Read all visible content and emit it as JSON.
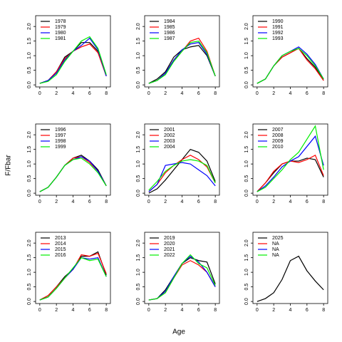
{
  "xlabel": "Age",
  "ylabel": "F/Fbar",
  "chart_data": [
    {
      "type": "line",
      "x": [
        0,
        1,
        2,
        3,
        4,
        5,
        6,
        7,
        8
      ],
      "xlim": [
        -0.5,
        8.5
      ],
      "xticks": [
        0,
        2,
        4,
        6,
        8
      ],
      "ylim": [
        -0.07,
        2.37
      ],
      "yticks": [
        {
          "value": 0,
          "label": "0.0"
        },
        {
          "value": 0.5,
          "label": "0.5"
        },
        {
          "value": 1,
          "label": "1.0"
        },
        {
          "value": 1.5,
          "label": "1.5"
        },
        {
          "value": 2,
          "label": "2.0"
        }
      ],
      "legend": "top-left",
      "series": [
        {
          "name": "1978",
          "color": "#000000",
          "values": [
            0.05,
            0.15,
            0.45,
            0.95,
            1.15,
            1.45,
            1.45,
            1.15,
            0.3
          ]
        },
        {
          "name": "1979",
          "color": "#ff0000",
          "values": [
            0.05,
            0.15,
            0.45,
            0.9,
            1.15,
            1.3,
            1.4,
            1.1,
            0.3
          ]
        },
        {
          "name": "1980",
          "color": "#0000ff",
          "values": [
            0.05,
            0.15,
            0.4,
            0.85,
            1.15,
            1.35,
            1.6,
            1.2,
            0.3
          ]
        },
        {
          "name": "1981",
          "color": "#00ee00",
          "values": [
            0.05,
            0.12,
            0.35,
            0.8,
            1.15,
            1.5,
            1.65,
            1.25,
            0.35
          ]
        }
      ]
    },
    {
      "type": "line",
      "x": [
        0,
        1,
        2,
        3,
        4,
        5,
        6,
        7,
        8
      ],
      "xlim": [
        -0.5,
        8.5
      ],
      "xticks": [
        0,
        2,
        4,
        6,
        8
      ],
      "ylim": [
        -0.07,
        2.37
      ],
      "yticks": [
        {
          "value": 0,
          "label": "0.0"
        },
        {
          "value": 0.5,
          "label": "0.5"
        },
        {
          "value": 1,
          "label": "1.0"
        },
        {
          "value": 1.5,
          "label": "1.5"
        },
        {
          "value": 2,
          "label": "2.0"
        }
      ],
      "legend": "top-left",
      "series": [
        {
          "name": "1984",
          "color": "#000000",
          "values": [
            0.05,
            0.2,
            0.45,
            0.95,
            1.2,
            1.3,
            1.35,
            1.0,
            0.3
          ]
        },
        {
          "name": "1985",
          "color": "#ff0000",
          "values": [
            0.05,
            0.15,
            0.4,
            0.85,
            1.15,
            1.5,
            1.6,
            1.15,
            0.3
          ]
        },
        {
          "name": "1986",
          "color": "#0000ff",
          "values": [
            0.05,
            0.15,
            0.4,
            0.85,
            1.2,
            1.4,
            1.45,
            1.05,
            0.3
          ]
        },
        {
          "name": "1987",
          "color": "#00ee00",
          "values": [
            0.05,
            0.15,
            0.35,
            0.8,
            1.15,
            1.45,
            1.5,
            1.1,
            0.3
          ]
        }
      ]
    },
    {
      "type": "line",
      "x": [
        0,
        1,
        2,
        3,
        4,
        5,
        6,
        7,
        8
      ],
      "xlim": [
        -0.5,
        8.5
      ],
      "xticks": [
        0,
        2,
        4,
        6,
        8
      ],
      "ylim": [
        -0.07,
        2.37
      ],
      "yticks": [
        {
          "value": 0,
          "label": "0.0"
        },
        {
          "value": 0.5,
          "label": "0.5"
        },
        {
          "value": 1,
          "label": "1.0"
        },
        {
          "value": 1.5,
          "label": "1.5"
        },
        {
          "value": 2,
          "label": "2.0"
        }
      ],
      "legend": "top-left",
      "series": [
        {
          "name": "1990",
          "color": "#000000",
          "values": [
            0.05,
            0.2,
            0.65,
            0.95,
            1.1,
            1.25,
            0.9,
            0.6,
            0.15
          ]
        },
        {
          "name": "1991",
          "color": "#ff0000",
          "values": [
            0.05,
            0.2,
            0.65,
            0.95,
            1.1,
            1.25,
            0.85,
            0.55,
            0.15
          ]
        },
        {
          "name": "1992",
          "color": "#0000ff",
          "values": [
            0.05,
            0.2,
            0.65,
            1.0,
            1.15,
            1.3,
            1.05,
            0.7,
            0.2
          ]
        },
        {
          "name": "1993",
          "color": "#00ee00",
          "values": [
            0.05,
            0.2,
            0.65,
            1.0,
            1.15,
            1.25,
            1.0,
            0.65,
            0.2
          ]
        }
      ]
    },
    {
      "type": "line",
      "x": [
        0,
        1,
        2,
        3,
        4,
        5,
        6,
        7,
        8
      ],
      "xlim": [
        -0.5,
        8.5
      ],
      "xticks": [
        0,
        2,
        4,
        6,
        8
      ],
      "ylim": [
        -0.07,
        2.37
      ],
      "yticks": [
        {
          "value": 0,
          "label": "0.0"
        },
        {
          "value": 0.5,
          "label": "0.5"
        },
        {
          "value": 1,
          "label": "1.0"
        },
        {
          "value": 1.5,
          "label": "1.5"
        },
        {
          "value": 2,
          "label": "2.0"
        }
      ],
      "legend": "top-left",
      "series": [
        {
          "name": "1996",
          "color": "#000000",
          "values": [
            0.05,
            0.2,
            0.55,
            0.95,
            1.2,
            1.3,
            1.1,
            0.8,
            0.25
          ]
        },
        {
          "name": "1997",
          "color": "#ff0000",
          "values": [
            0.05,
            0.2,
            0.55,
            0.95,
            1.2,
            1.25,
            1.05,
            0.75,
            0.25
          ]
        },
        {
          "name": "1998",
          "color": "#0000ff",
          "values": [
            0.05,
            0.2,
            0.55,
            0.95,
            1.15,
            1.25,
            1.1,
            0.75,
            0.25
          ]
        },
        {
          "name": "1999",
          "color": "#00ee00",
          "values": [
            0.05,
            0.2,
            0.55,
            0.95,
            1.15,
            1.2,
            1.0,
            0.7,
            0.25
          ]
        }
      ]
    },
    {
      "type": "line",
      "x": [
        0,
        1,
        2,
        3,
        4,
        5,
        6,
        7,
        8
      ],
      "xlim": [
        -0.5,
        8.5
      ],
      "xticks": [
        0,
        2,
        4,
        6,
        8
      ],
      "ylim": [
        -0.07,
        2.37
      ],
      "yticks": [
        {
          "value": 0,
          "label": "0.0"
        },
        {
          "value": 0.5,
          "label": "0.5"
        },
        {
          "value": 1,
          "label": "1.0"
        },
        {
          "value": 1.5,
          "label": "1.5"
        },
        {
          "value": 2,
          "label": "2.0"
        }
      ],
      "legend": "top-left",
      "series": [
        {
          "name": "2001",
          "color": "#000000",
          "values": [
            0.0,
            0.15,
            0.45,
            0.8,
            1.15,
            1.5,
            1.4,
            1.1,
            0.4
          ]
        },
        {
          "name": "2002",
          "color": "#ff0000",
          "values": [
            0.05,
            0.3,
            0.7,
            0.95,
            1.15,
            1.3,
            1.15,
            0.9,
            0.35
          ]
        },
        {
          "name": "2003",
          "color": "#0000ff",
          "values": [
            0.05,
            0.3,
            0.95,
            1.0,
            1.05,
            1.0,
            0.8,
            0.6,
            0.25
          ]
        },
        {
          "name": "2004",
          "color": "#00ee00",
          "values": [
            0.1,
            0.4,
            0.75,
            0.95,
            1.1,
            1.15,
            1.1,
            0.95,
            0.35
          ]
        }
      ]
    },
    {
      "type": "line",
      "x": [
        0,
        1,
        2,
        3,
        4,
        5,
        6,
        7,
        8
      ],
      "xlim": [
        -0.5,
        8.5
      ],
      "xticks": [
        0,
        2,
        4,
        6,
        8
      ],
      "ylim": [
        -0.07,
        2.37
      ],
      "yticks": [
        {
          "value": 0,
          "label": "0.0"
        },
        {
          "value": 0.5,
          "label": "0.5"
        },
        {
          "value": 1,
          "label": "1.0"
        },
        {
          "value": 1.5,
          "label": "1.5"
        },
        {
          "value": 2,
          "label": "2.0"
        }
      ],
      "legend": "top-left",
      "series": [
        {
          "name": "2007",
          "color": "#000000",
          "values": [
            0.05,
            0.35,
            0.7,
            1.0,
            1.1,
            1.1,
            1.2,
            1.15,
            0.55
          ]
        },
        {
          "name": "2008",
          "color": "#ff0000",
          "values": [
            0.05,
            0.35,
            0.75,
            1.0,
            1.1,
            1.05,
            1.15,
            1.3,
            0.6
          ]
        },
        {
          "name": "2009",
          "color": "#0000ff",
          "values": [
            0.05,
            0.25,
            0.55,
            0.9,
            1.1,
            1.25,
            1.6,
            1.95,
            0.95
          ]
        },
        {
          "name": "2010",
          "color": "#00ee00",
          "values": [
            0.05,
            0.2,
            0.5,
            0.8,
            1.15,
            1.4,
            1.85,
            2.3,
            0.8
          ]
        }
      ]
    },
    {
      "type": "line",
      "x": [
        0,
        1,
        2,
        3,
        4,
        5,
        6,
        7,
        8
      ],
      "xlim": [
        -0.5,
        8.5
      ],
      "xticks": [
        0,
        2,
        4,
        6,
        8
      ],
      "ylim": [
        -0.07,
        2.37
      ],
      "yticks": [
        {
          "value": 0,
          "label": "0.0"
        },
        {
          "value": 0.5,
          "label": "0.5"
        },
        {
          "value": 1,
          "label": "1.0"
        },
        {
          "value": 1.5,
          "label": "1.5"
        },
        {
          "value": 2,
          "label": "2.0"
        }
      ],
      "legend": "top-left",
      "series": [
        {
          "name": "2013",
          "color": "#000000",
          "values": [
            0.05,
            0.2,
            0.5,
            0.85,
            1.1,
            1.55,
            1.55,
            1.7,
            0.9
          ]
        },
        {
          "name": "2014",
          "color": "#ff0000",
          "values": [
            0.05,
            0.2,
            0.5,
            0.8,
            1.1,
            1.6,
            1.55,
            1.65,
            0.95
          ]
        },
        {
          "name": "2015",
          "color": "#0000ff",
          "values": [
            0.05,
            0.15,
            0.45,
            0.8,
            1.1,
            1.5,
            1.45,
            1.5,
            0.85
          ]
        },
        {
          "name": "2016",
          "color": "#00ee00",
          "values": [
            0.05,
            0.15,
            0.45,
            0.8,
            1.15,
            1.5,
            1.4,
            1.45,
            0.85
          ]
        }
      ]
    },
    {
      "type": "line",
      "x": [
        0,
        1,
        2,
        3,
        4,
        5,
        6,
        7,
        8
      ],
      "xlim": [
        -0.5,
        8.5
      ],
      "xticks": [
        0,
        2,
        4,
        6,
        8
      ],
      "ylim": [
        -0.07,
        2.37
      ],
      "yticks": [
        {
          "value": 0,
          "label": "0.0"
        },
        {
          "value": 0.5,
          "label": "0.5"
        },
        {
          "value": 1,
          "label": "1.0"
        },
        {
          "value": 1.5,
          "label": "1.5"
        },
        {
          "value": 2,
          "label": "2.0"
        }
      ],
      "legend": "top-left",
      "series": [
        {
          "name": "2019",
          "color": "#000000",
          "values": [
            0.05,
            0.1,
            0.4,
            0.85,
            1.3,
            1.5,
            1.4,
            1.35,
            0.6
          ]
        },
        {
          "name": "2020",
          "color": "#ff0000",
          "values": [
            0.05,
            0.1,
            0.3,
            0.8,
            1.25,
            1.4,
            1.25,
            1.0,
            0.5
          ]
        },
        {
          "name": "2021",
          "color": "#0000ff",
          "values": [
            0.05,
            0.1,
            0.35,
            0.85,
            1.3,
            1.55,
            1.35,
            1.0,
            0.5
          ]
        },
        {
          "name": "2022",
          "color": "#00ee00",
          "values": [
            0.05,
            0.1,
            0.3,
            0.8,
            1.3,
            1.6,
            1.3,
            1.15,
            0.55
          ]
        }
      ]
    },
    {
      "type": "line",
      "x": [
        0,
        1,
        2,
        3,
        4,
        5,
        6,
        7,
        8
      ],
      "xlim": [
        -0.5,
        8.5
      ],
      "xticks": [
        0,
        2,
        4,
        6,
        8
      ],
      "ylim": [
        -0.07,
        2.37
      ],
      "yticks": [
        {
          "value": 0,
          "label": "0.0"
        },
        {
          "value": 0.5,
          "label": "0.5"
        },
        {
          "value": 1,
          "label": "1.0"
        },
        {
          "value": 1.5,
          "label": "1.5"
        },
        {
          "value": 2,
          "label": "2.0"
        }
      ],
      "legend": "top-left",
      "series": [
        {
          "name": "2025",
          "color": "#000000",
          "values": [
            0.0,
            0.1,
            0.3,
            0.75,
            1.4,
            1.55,
            1.05,
            0.7,
            0.4
          ]
        },
        {
          "name": "NA",
          "color": "#ff0000",
          "values": [
            null,
            null,
            null,
            null,
            null,
            null,
            null,
            null,
            null
          ]
        },
        {
          "name": "NA",
          "color": "#0000ff",
          "values": [
            null,
            null,
            null,
            null,
            null,
            null,
            null,
            null,
            null
          ]
        },
        {
          "name": "NA",
          "color": "#00ee00",
          "values": [
            null,
            null,
            null,
            null,
            null,
            null,
            null,
            null,
            null
          ]
        }
      ]
    }
  ]
}
